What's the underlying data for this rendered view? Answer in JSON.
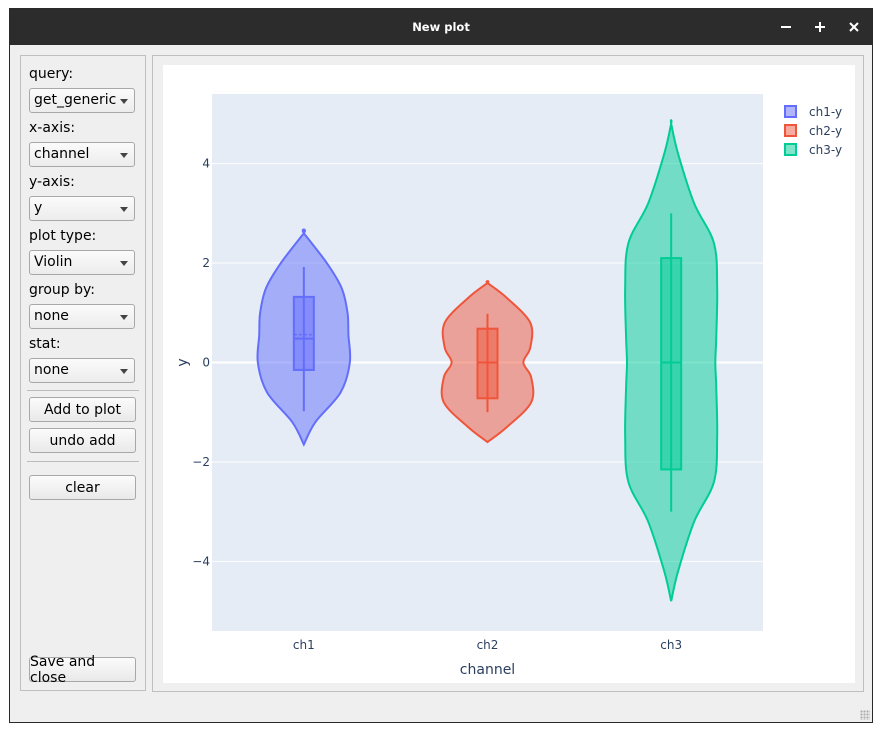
{
  "window": {
    "title": "New plot",
    "minimize_icon": "minimize-icon",
    "maximize_icon": "maximize-icon",
    "close_icon": "close-icon"
  },
  "controls": {
    "query_label": "query:",
    "query_value": "get_generic",
    "xaxis_label": "x-axis:",
    "xaxis_value": "channel",
    "yaxis_label": "y-axis:",
    "yaxis_value": "y",
    "plottype_label": "plot type:",
    "plottype_value": "Violin",
    "groupby_label": "group by:",
    "groupby_value": "none",
    "stat_label": "stat:",
    "stat_value": "none",
    "add_label": "Add to plot",
    "undo_label": "undo add",
    "clear_label": "clear",
    "save_label": "Save and close"
  },
  "chart_data": {
    "type": "violin",
    "xlabel": "channel",
    "ylabel": "y",
    "categories": [
      "ch1",
      "ch2",
      "ch3"
    ],
    "ylim": [
      -5.4,
      5.4
    ],
    "yticks": [
      -4,
      -2,
      0,
      2,
      4
    ],
    "ytick_labels": [
      "−4",
      "−2",
      "0",
      "2",
      "4"
    ],
    "grid": true,
    "legend_position": "top-right",
    "series": [
      {
        "name": "ch1-y",
        "color": "#636efa",
        "min": -1.65,
        "max": 2.6,
        "box": {
          "q1": -0.15,
          "median": 0.48,
          "mean": 0.56,
          "q3": 1.32,
          "lower_whisker": -0.98,
          "upper_whisker": 1.92
        },
        "profile": [
          [
            -1.65,
            0.0
          ],
          [
            -1.2,
            0.25
          ],
          [
            -0.6,
            0.8
          ],
          [
            0.0,
            1.0
          ],
          [
            0.55,
            0.97
          ],
          [
            1.0,
            0.95
          ],
          [
            1.5,
            0.82
          ],
          [
            2.0,
            0.5
          ],
          [
            2.6,
            0.0
          ]
        ]
      },
      {
        "name": "ch2-y",
        "color": "#ef553b",
        "min": -1.6,
        "max": 1.6,
        "box": {
          "q1": -0.72,
          "median": 0.0,
          "mean": 0.0,
          "q3": 0.68,
          "lower_whisker": -1.0,
          "upper_whisker": 0.98
        },
        "profile": [
          [
            -1.6,
            0.0
          ],
          [
            -1.3,
            0.42
          ],
          [
            -0.8,
            0.95
          ],
          [
            -0.3,
            0.95
          ],
          [
            0.0,
            0.78
          ],
          [
            0.3,
            0.93
          ],
          [
            0.8,
            0.93
          ],
          [
            1.3,
            0.42
          ],
          [
            1.6,
            0.0
          ]
        ]
      },
      {
        "name": "ch3-y",
        "color": "#00cc96",
        "min": -4.8,
        "max": 4.8,
        "box": {
          "q1": -2.15,
          "median": 0.0,
          "mean": 0.0,
          "q3": 2.1,
          "lower_whisker": -3.0,
          "upper_whisker": 3.0
        },
        "profile": [
          [
            -4.8,
            0.0
          ],
          [
            -4.2,
            0.15
          ],
          [
            -3.2,
            0.5
          ],
          [
            -2.4,
            0.93
          ],
          [
            -1.5,
            1.0
          ],
          [
            -0.5,
            0.98
          ],
          [
            0.0,
            0.96
          ],
          [
            0.5,
            0.98
          ],
          [
            1.5,
            1.0
          ],
          [
            2.4,
            0.93
          ],
          [
            3.2,
            0.5
          ],
          [
            4.2,
            0.15
          ],
          [
            4.8,
            0.0
          ]
        ]
      }
    ]
  }
}
